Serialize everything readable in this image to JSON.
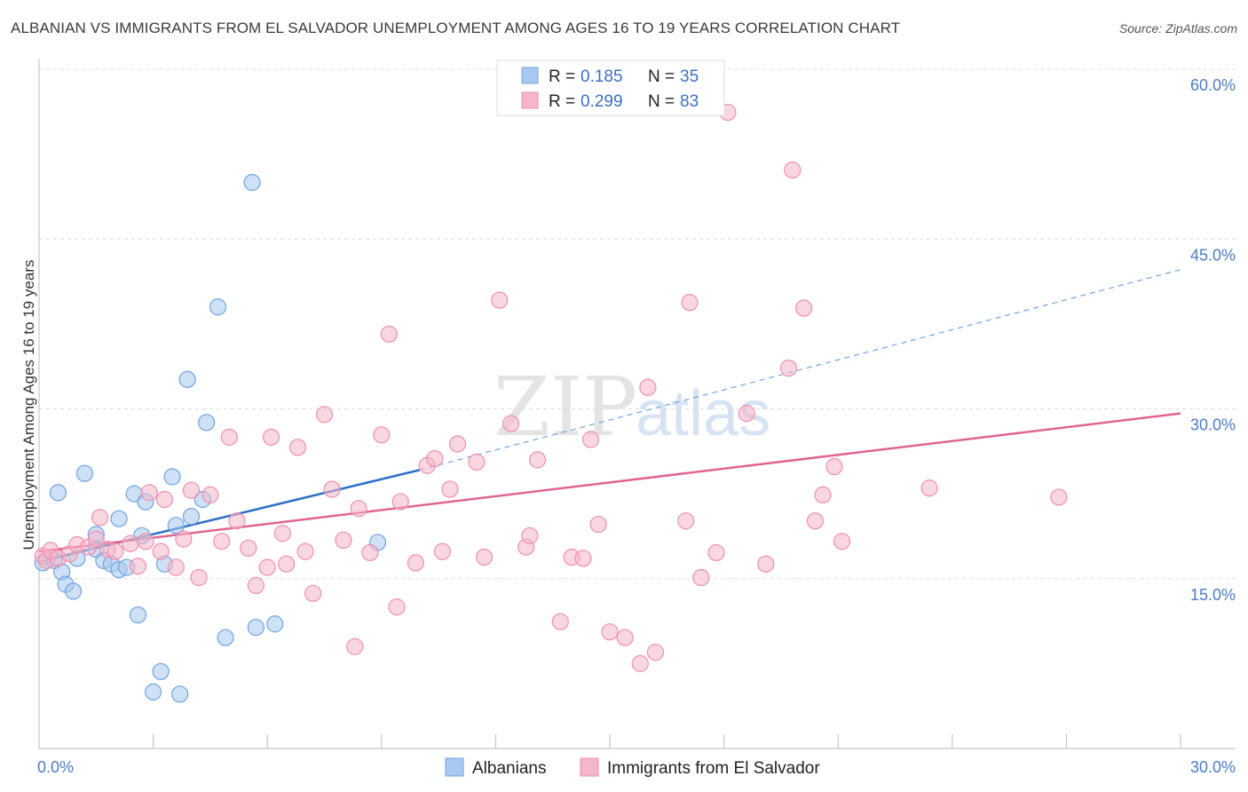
{
  "title": "ALBANIAN VS IMMIGRANTS FROM EL SALVADOR UNEMPLOYMENT AMONG AGES 16 TO 19 YEARS CORRELATION CHART",
  "source": "Source: ZipAtlas.com",
  "watermark": {
    "zip": "ZIP",
    "atlas": "atlas"
  },
  "legend_top": [
    {
      "r_label": "R =",
      "r_value": "0.185",
      "n_label": "N =",
      "n_value": "35",
      "color": "#a8c8ef"
    },
    {
      "r_label": "R =",
      "r_value": "0.299",
      "n_label": "N =",
      "n_value": "83",
      "color": "#f4b6c8"
    }
  ],
  "legend_bottom": [
    {
      "label": "Albanians",
      "color": "#a8c8ef"
    },
    {
      "label": "Immigrants from El Salvador",
      "color": "#f4b6c8"
    }
  ],
  "chart_data": {
    "type": "scatter",
    "title": "ALBANIAN VS IMMIGRANTS FROM EL SALVADOR UNEMPLOYMENT AMONG AGES 16 TO 19 YEARS CORRELATION CHART",
    "xlabel": "",
    "ylabel": "Unemployment Among Ages 16 to 19 years",
    "xlim": [
      0,
      30
    ],
    "ylim": [
      0,
      60
    ],
    "x_tick_labels": [
      "0.0%",
      "30.0%"
    ],
    "y_tick_labels": [
      "15.0%",
      "30.0%",
      "45.0%",
      "60.0%"
    ],
    "y_ticks": [
      15,
      30,
      45,
      60
    ],
    "grid": true,
    "series": [
      {
        "name": "Albanians",
        "color": "#6fa3e0",
        "fill": "#a8c8ef",
        "r": 0.185,
        "n": 35,
        "trend": {
          "x0": 0,
          "y0": 16.5,
          "x1": 10,
          "y1": 24.6,
          "dashed_to_x": 30,
          "dashed_to_y": 42.3,
          "color": "#2e6fc9"
        },
        "points": [
          [
            0.1,
            16.4
          ],
          [
            0.4,
            16.6
          ],
          [
            0.5,
            22.6
          ],
          [
            0.6,
            15.6
          ],
          [
            0.7,
            14.5
          ],
          [
            0.9,
            13.9
          ],
          [
            1.0,
            16.8
          ],
          [
            1.2,
            24.3
          ],
          [
            1.5,
            17.6
          ],
          [
            1.5,
            18.9
          ],
          [
            1.7,
            16.6
          ],
          [
            1.9,
            16.3
          ],
          [
            2.1,
            15.8
          ],
          [
            2.1,
            20.3
          ],
          [
            2.3,
            16.0
          ],
          [
            2.5,
            22.5
          ],
          [
            2.6,
            11.8
          ],
          [
            2.7,
            18.8
          ],
          [
            2.8,
            21.8
          ],
          [
            3.0,
            5.0
          ],
          [
            3.2,
            6.8
          ],
          [
            3.3,
            16.3
          ],
          [
            3.5,
            24.0
          ],
          [
            3.6,
            19.7
          ],
          [
            3.7,
            4.8
          ],
          [
            3.9,
            32.6
          ],
          [
            4.0,
            20.5
          ],
          [
            4.3,
            22.0
          ],
          [
            4.4,
            28.8
          ],
          [
            4.7,
            39.0
          ],
          [
            4.9,
            9.8
          ],
          [
            5.6,
            50.0
          ],
          [
            5.7,
            10.7
          ],
          [
            6.2,
            11.0
          ],
          [
            8.9,
            18.2
          ]
        ]
      },
      {
        "name": "Immigrants from El Salvador",
        "color": "#ee8fae",
        "fill": "#f4b6c8",
        "r": 0.299,
        "n": 83,
        "trend": {
          "x0": 0,
          "y0": 17.4,
          "x1": 30,
          "y1": 29.6,
          "color": "#e0658f"
        },
        "points": [
          [
            0.1,
            17.0
          ],
          [
            0.2,
            16.6
          ],
          [
            0.3,
            17.5
          ],
          [
            0.5,
            16.8
          ],
          [
            0.8,
            17.2
          ],
          [
            1.0,
            18.0
          ],
          [
            1.3,
            17.8
          ],
          [
            1.5,
            18.5
          ],
          [
            1.6,
            20.4
          ],
          [
            1.8,
            17.6
          ],
          [
            2.0,
            17.4
          ],
          [
            2.4,
            18.1
          ],
          [
            2.6,
            16.1
          ],
          [
            2.8,
            18.3
          ],
          [
            2.9,
            22.6
          ],
          [
            3.2,
            17.4
          ],
          [
            3.3,
            22.0
          ],
          [
            3.6,
            16.0
          ],
          [
            3.8,
            18.5
          ],
          [
            4.0,
            22.8
          ],
          [
            4.2,
            15.1
          ],
          [
            4.5,
            22.4
          ],
          [
            4.8,
            18.3
          ],
          [
            5.0,
            27.5
          ],
          [
            5.2,
            20.1
          ],
          [
            5.5,
            17.7
          ],
          [
            5.7,
            14.4
          ],
          [
            6.0,
            16.0
          ],
          [
            6.1,
            27.5
          ],
          [
            6.4,
            19.0
          ],
          [
            6.5,
            16.3
          ],
          [
            6.8,
            26.6
          ],
          [
            7.0,
            17.4
          ],
          [
            7.2,
            13.7
          ],
          [
            7.5,
            29.5
          ],
          [
            7.7,
            22.9
          ],
          [
            8.0,
            18.4
          ],
          [
            8.3,
            9.0
          ],
          [
            8.4,
            21.2
          ],
          [
            8.7,
            17.3
          ],
          [
            9.0,
            27.7
          ],
          [
            9.2,
            36.6
          ],
          [
            9.4,
            12.5
          ],
          [
            9.5,
            21.8
          ],
          [
            9.9,
            16.4
          ],
          [
            10.2,
            25.0
          ],
          [
            10.4,
            25.6
          ],
          [
            10.6,
            17.4
          ],
          [
            10.8,
            22.9
          ],
          [
            11.0,
            26.9
          ],
          [
            11.5,
            25.3
          ],
          [
            11.7,
            16.9
          ],
          [
            12.1,
            39.6
          ],
          [
            12.4,
            28.7
          ],
          [
            12.8,
            17.8
          ],
          [
            12.9,
            18.8
          ],
          [
            13.1,
            25.5
          ],
          [
            13.7,
            11.2
          ],
          [
            14.0,
            16.9
          ],
          [
            14.3,
            16.8
          ],
          [
            14.5,
            27.3
          ],
          [
            14.7,
            19.8
          ],
          [
            15.0,
            10.3
          ],
          [
            15.4,
            9.8
          ],
          [
            15.8,
            7.5
          ],
          [
            16.0,
            31.9
          ],
          [
            16.2,
            8.5
          ],
          [
            17.0,
            20.1
          ],
          [
            17.1,
            39.4
          ],
          [
            17.4,
            15.1
          ],
          [
            17.8,
            17.3
          ],
          [
            18.1,
            56.2
          ],
          [
            18.6,
            29.6
          ],
          [
            19.1,
            16.3
          ],
          [
            19.7,
            33.6
          ],
          [
            19.8,
            51.1
          ],
          [
            20.1,
            38.9
          ],
          [
            20.4,
            20.1
          ],
          [
            20.6,
            22.4
          ],
          [
            21.1,
            18.3
          ],
          [
            20.9,
            24.9
          ],
          [
            23.4,
            23.0
          ],
          [
            26.8,
            22.2
          ]
        ]
      }
    ]
  }
}
